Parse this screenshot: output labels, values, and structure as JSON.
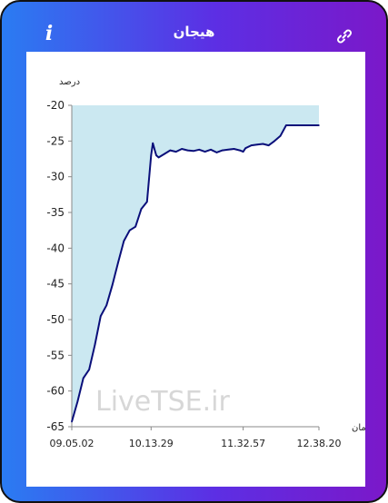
{
  "header": {
    "title": "هیجان",
    "info_label": "i"
  },
  "icons": {
    "info": "info-icon",
    "link": "link-icon"
  },
  "colors": {
    "gradient_start": "#2a7cf2",
    "gradient_end": "#7b18c9",
    "line": "#0a0f7a",
    "area_fill": "#cbe8f1"
  },
  "watermark": "LiveTSE.ir",
  "chart_data": {
    "type": "line",
    "ylabel": "درصد",
    "xlabel": "زمان",
    "ylim": [
      -65,
      -20
    ],
    "yticks": [
      -20,
      -25,
      -30,
      -35,
      -40,
      -45,
      -50,
      -55,
      -60,
      -65
    ],
    "xticks": [
      "09.05.02",
      "10.13.29",
      "11.32.57",
      "12.38.20"
    ],
    "x": [
      "09.05.02",
      "09.10",
      "09.15",
      "09.20",
      "09.25",
      "09.30",
      "09.35",
      "09.40",
      "09.45",
      "09.50",
      "09.55",
      "10.00",
      "10.05",
      "10.10",
      "10.13.29",
      "10.15",
      "10.17",
      "10.18",
      "10.20",
      "10.25",
      "10.30",
      "10.35",
      "10.40",
      "10.45",
      "10.50",
      "10.55",
      "11.00",
      "11.05",
      "11.10",
      "11.15",
      "11.20",
      "11.25",
      "11.30",
      "11.32.57",
      "11.35",
      "11.40",
      "11.45",
      "11.50",
      "11.55",
      "12.00",
      "12.05",
      "12.10",
      "12.15",
      "12.20",
      "12.25",
      "12.30",
      "12.35",
      "12.38.20"
    ],
    "y": [
      -64.3,
      -61.5,
      -58.2,
      -57,
      -53.5,
      -49.5,
      -48,
      -45.2,
      -42,
      -39,
      -37.5,
      -37,
      -34.5,
      -33.5,
      -27,
      -25.3,
      -26.5,
      -27,
      -27.3,
      -26.8,
      -26.3,
      -26.5,
      -26.1,
      -26.3,
      -26.4,
      -26.2,
      -26.5,
      -26.2,
      -26.6,
      -26.3,
      -26.2,
      -26.1,
      -26.3,
      -26.5,
      -26,
      -25.6,
      -25.5,
      -25.4,
      -25.6,
      -25,
      -24.3,
      -22.8,
      -22.8,
      -22.8,
      -22.8,
      -22.8,
      -22.8,
      -22.8
    ]
  }
}
